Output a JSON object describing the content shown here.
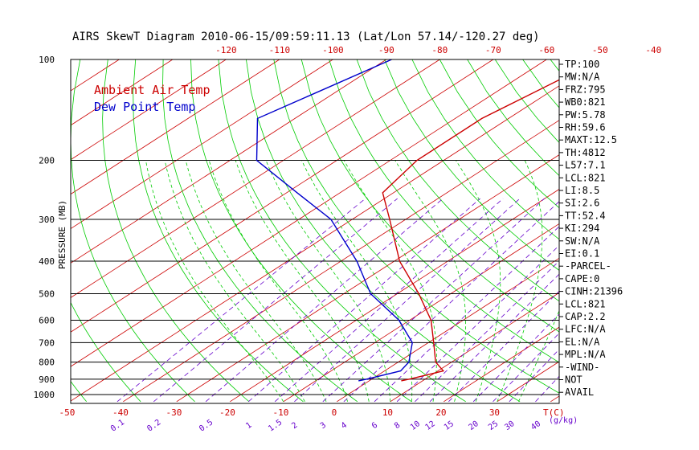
{
  "chart_data": {
    "type": "line",
    "title": "AIRS SkewT Diagram 2010-06-15/09:59:11.13 (Lat/Lon 57.14/-120.27 deg)",
    "ylabel": "PRESSURE (MB)",
    "xlabel_bottom": "T(C)",
    "mixing_label": "(g/kg)",
    "ylim": [
      1050,
      100
    ],
    "y_scale": "log",
    "xlim_bottom": [
      -50,
      40
    ],
    "top_ticks": [
      "-120",
      "-110",
      "-100",
      "-90",
      "-80",
      "-70",
      "-60",
      "-50",
      "-40"
    ],
    "top_tick_values": [
      -120,
      -110,
      -100,
      -90,
      -80,
      -70,
      -60,
      -50,
      -40
    ],
    "bottom_ticks": [
      "-50",
      "-40",
      "-30",
      "-20",
      "-10",
      "0",
      "10",
      "20",
      "30"
    ],
    "bottom_tick_values": [
      -50,
      -40,
      -30,
      -20,
      -10,
      0,
      10,
      20,
      30
    ],
    "pressure_ticks": [
      "100",
      "200",
      "300",
      "400",
      "500",
      "600",
      "700",
      "800",
      "900",
      "1000"
    ],
    "pressure_values": [
      100,
      200,
      300,
      400,
      500,
      600,
      700,
      800,
      900,
      1000
    ],
    "mixing_ratios": [
      "0.1",
      "0.2",
      "0.5",
      "1",
      "1.5",
      "2",
      "3",
      "4",
      "6",
      "8",
      "10",
      "12",
      "15",
      "20",
      "25",
      "30",
      "40"
    ],
    "mixing_values": [
      0.1,
      0.2,
      0.5,
      1,
      1.5,
      2,
      3,
      4,
      6,
      8,
      10,
      12,
      15,
      20,
      25,
      30,
      40
    ],
    "series": [
      {
        "name": "Ambient Air Temp",
        "color": "#cc0000",
        "points": [
          [
            100,
            -50
          ],
          [
            150,
            -55
          ],
          [
            200,
            -55
          ],
          [
            250,
            -52
          ],
          [
            300,
            -43
          ],
          [
            400,
            -29
          ],
          [
            500,
            -16
          ],
          [
            600,
            -6
          ],
          [
            700,
            1
          ],
          [
            800,
            7
          ],
          [
            850,
            11
          ],
          [
            900,
            7
          ],
          [
            910,
            6
          ]
        ]
      },
      {
        "name": "Dew Point Temp",
        "color": "#0000cc",
        "points": [
          [
            100,
            -89
          ],
          [
            150,
            -97
          ],
          [
            200,
            -85
          ],
          [
            250,
            -68
          ],
          [
            300,
            -54
          ],
          [
            400,
            -37
          ],
          [
            500,
            -25
          ],
          [
            600,
            -12
          ],
          [
            700,
            -3
          ],
          [
            800,
            2
          ],
          [
            850,
            3
          ],
          [
            900,
            -1
          ],
          [
            910,
            -2
          ]
        ]
      }
    ],
    "grid": true
  },
  "right_panel": [
    "TP:100",
    "MW:N/A",
    "FRZ:795",
    "WB0:821",
    "PW:5.78",
    "RH:59.6",
    "MAXT:12.5",
    "TH:4812",
    "L57:7.1",
    "LCL:821",
    "LI:8.5",
    "SI:2.6",
    "TT:52.4",
    "KI:294",
    "SW:N/A",
    "EI:0.1",
    "-PARCEL-",
    "CAPE:0",
    "CINH:21396",
    "LCL:821",
    "CAP:2.2",
    "LFC:N/A",
    "EL:N/A",
    "MPL:N/A",
    "-WIND-",
    "NOT",
    "AVAIL"
  ],
  "colors": {
    "temp_lines": "#cc0000",
    "dry_adiabats": "#00cc00",
    "moist_adiabats": "#00cc00",
    "mixing_lines": "#6600cc",
    "isobars": "#000000"
  }
}
